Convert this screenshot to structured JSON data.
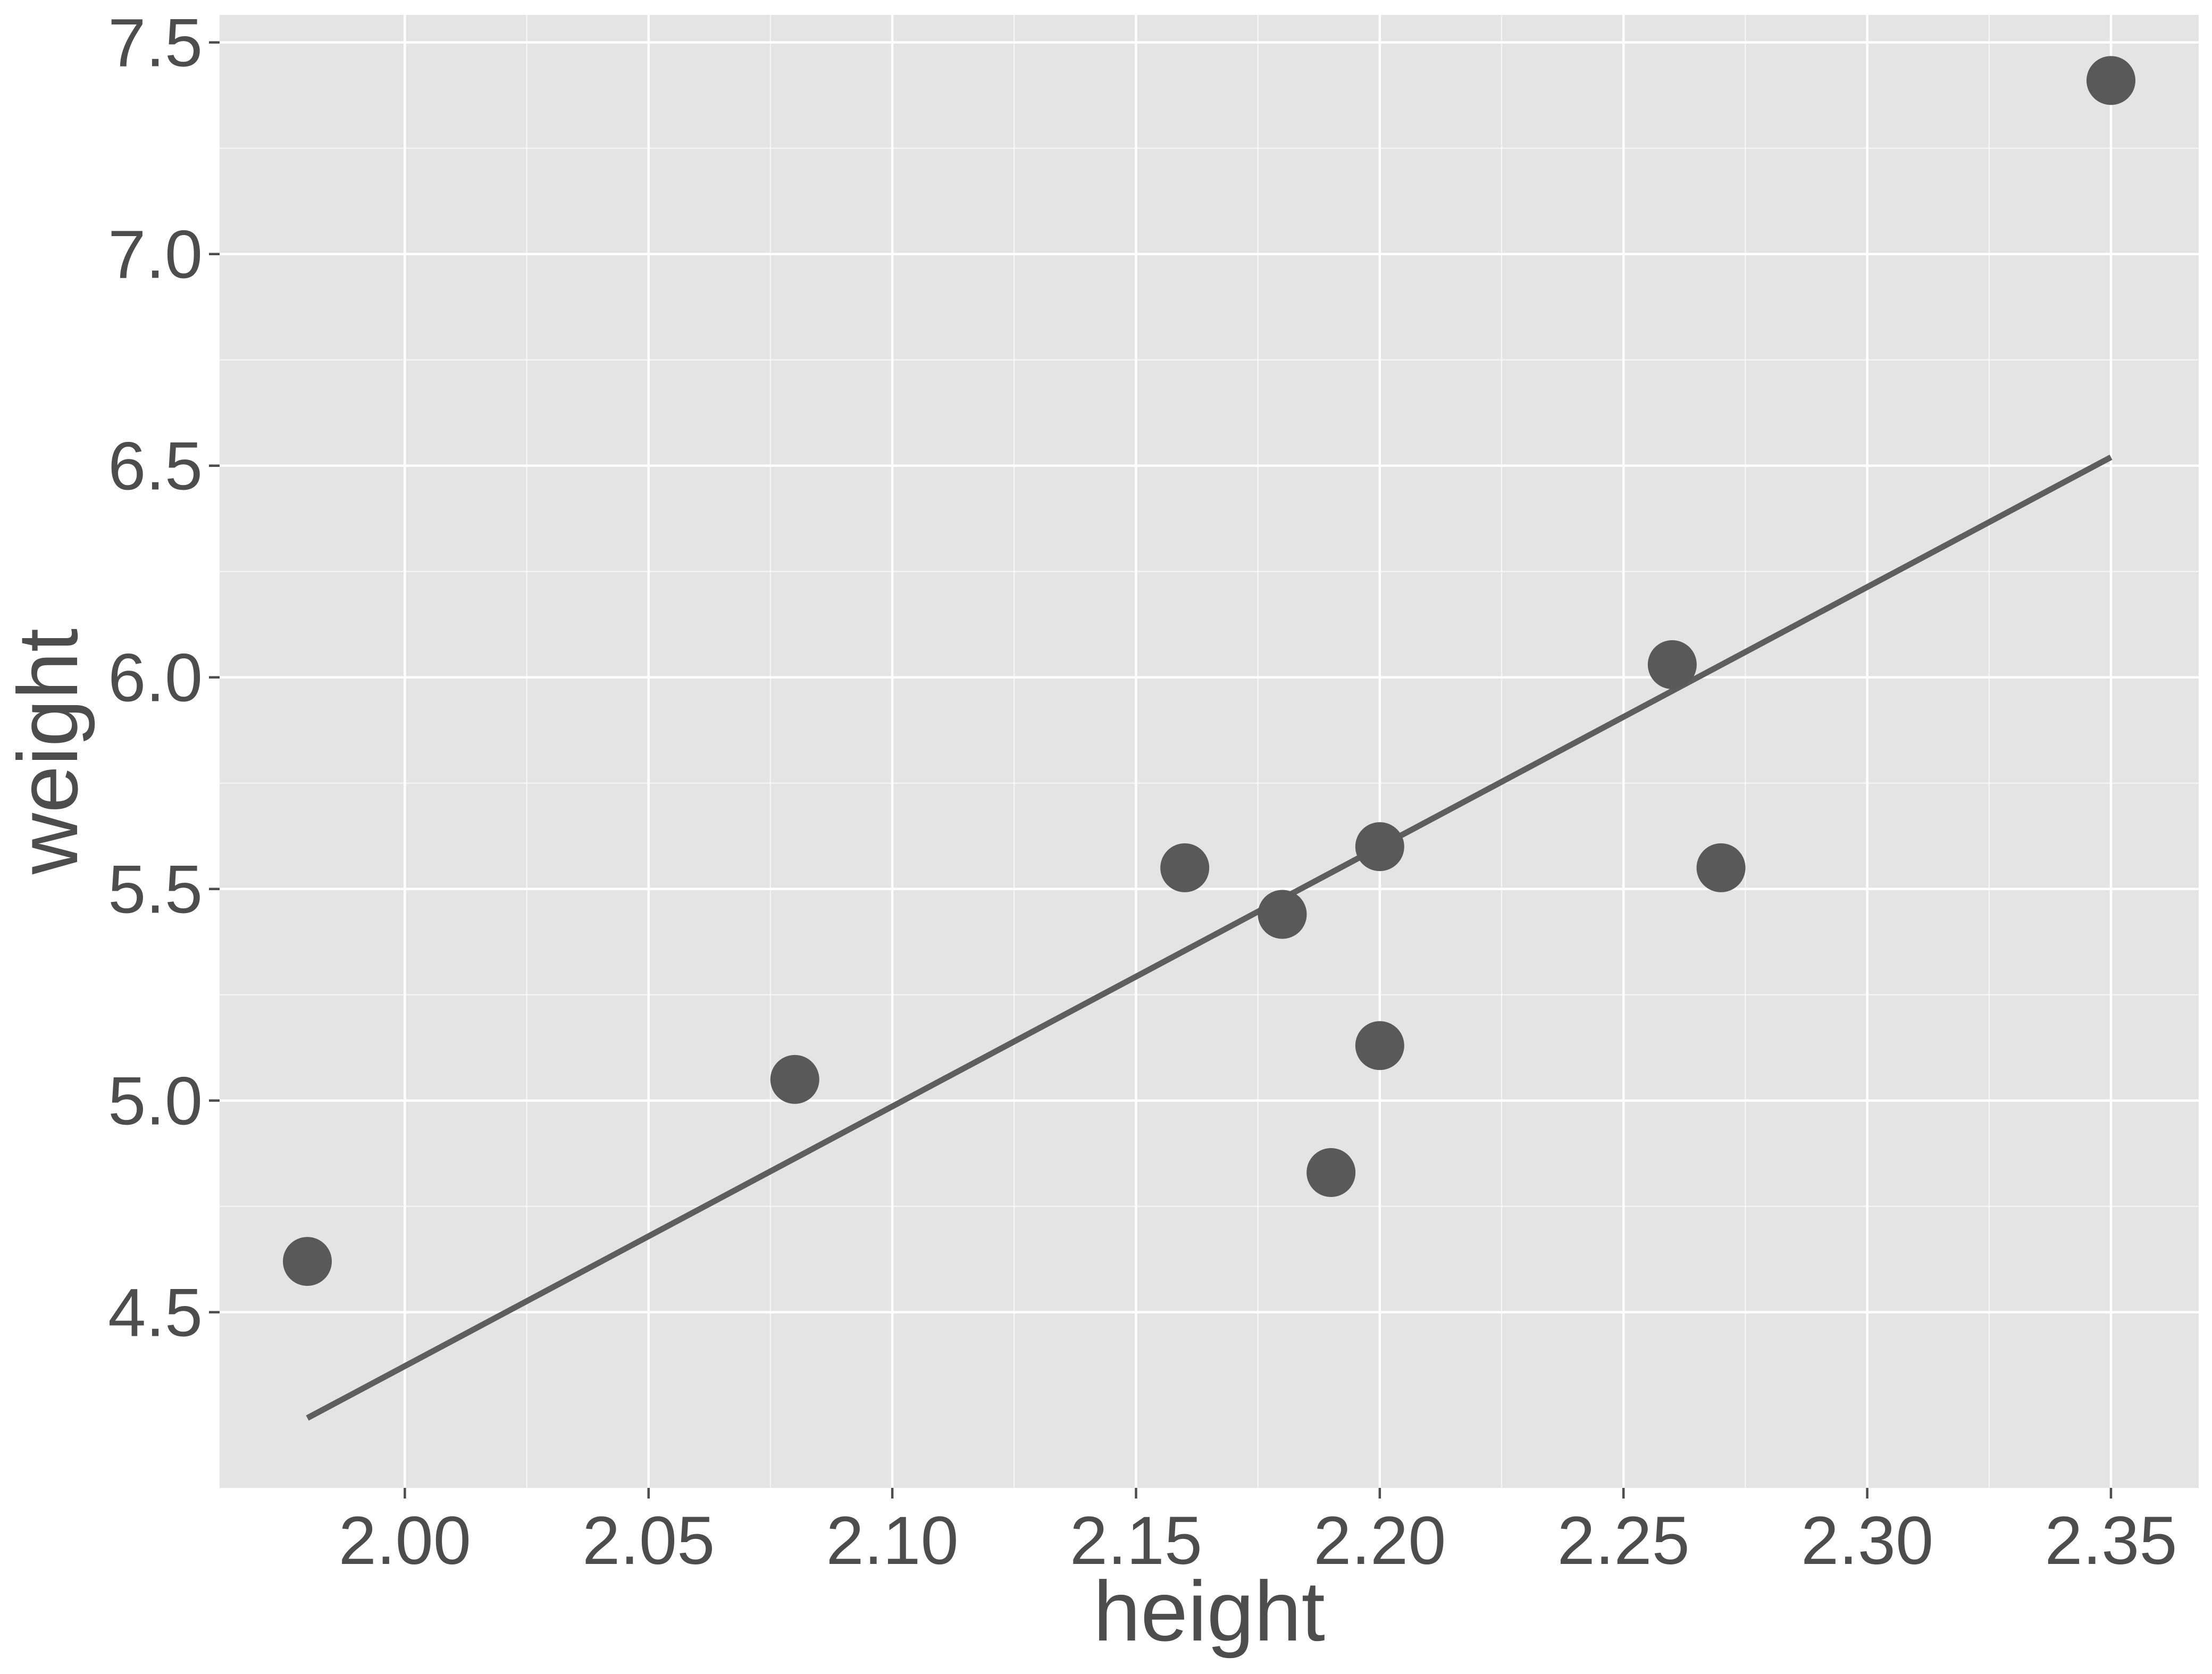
{
  "colors": {
    "panel_background": "#e4e4e4",
    "grid_line": "#ffffff",
    "point_fill": "#595959",
    "fit_line": "#5e5e5e",
    "text": "#4d4d4d",
    "tick_mark": "#4d4d4d"
  },
  "chart_data": {
    "type": "scatter",
    "title": "",
    "xlabel": "height",
    "ylabel": "weight",
    "xlim": [
      1.962,
      2.368
    ],
    "ylim": [
      4.085,
      7.565
    ],
    "x_ticks": [
      2.0,
      2.05,
      2.1,
      2.15,
      2.2,
      2.25,
      2.3,
      2.35
    ],
    "x_tick_labels": [
      "2.00",
      "2.05",
      "2.10",
      "2.15",
      "2.20",
      "2.25",
      "2.30",
      "2.35"
    ],
    "y_ticks": [
      4.5,
      5.0,
      5.5,
      6.0,
      6.5,
      7.0,
      7.5
    ],
    "y_tick_labels": [
      "4.5",
      "5.0",
      "5.5",
      "6.0",
      "6.5",
      "7.0",
      "7.5"
    ],
    "grid": true,
    "legend": "none",
    "points": [
      {
        "x": 1.98,
        "y": 4.62
      },
      {
        "x": 2.08,
        "y": 5.05
      },
      {
        "x": 2.16,
        "y": 5.55
      },
      {
        "x": 2.18,
        "y": 5.44
      },
      {
        "x": 2.19,
        "y": 4.83
      },
      {
        "x": 2.2,
        "y": 5.6
      },
      {
        "x": 2.2,
        "y": 5.13
      },
      {
        "x": 2.26,
        "y": 6.03
      },
      {
        "x": 2.27,
        "y": 5.55
      },
      {
        "x": 2.35,
        "y": 7.41
      }
    ],
    "fit_line": {
      "type": "linear",
      "x": [
        1.98,
        2.35
      ],
      "y": [
        4.25,
        6.52
      ]
    }
  }
}
